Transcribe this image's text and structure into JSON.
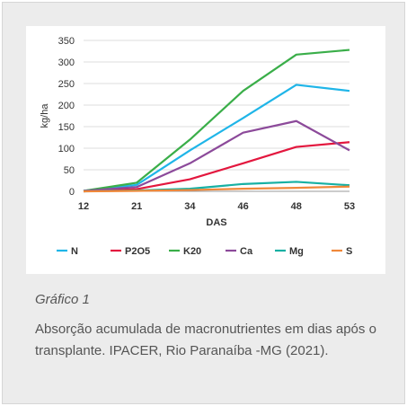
{
  "chart_data": {
    "type": "line",
    "title": "",
    "xlabel": "DAS",
    "ylabel": "kg/ha",
    "categories": [
      "12",
      "21",
      "34",
      "46",
      "48",
      "53"
    ],
    "ylim": [
      0,
      350
    ],
    "yticks": [
      0,
      50,
      100,
      150,
      200,
      250,
      300,
      350
    ],
    "grid": "horizontal",
    "legend_position": "bottom",
    "series": [
      {
        "name": "N",
        "color": "#1fb5e8",
        "values": [
          1,
          15,
          95,
          170,
          247,
          233
        ]
      },
      {
        "name": "P2O5",
        "color": "#e3173e",
        "values": [
          0,
          5,
          28,
          65,
          103,
          114
        ]
      },
      {
        "name": "K20",
        "color": "#3aae49",
        "values": [
          1,
          20,
          120,
          233,
          317,
          328
        ]
      },
      {
        "name": "Ca",
        "color": "#8c4a9a",
        "values": [
          1,
          10,
          65,
          136,
          163,
          95
        ]
      },
      {
        "name": "Mg",
        "color": "#17b0a3",
        "values": [
          0,
          2,
          6,
          17,
          22,
          14
        ]
      },
      {
        "name": "S",
        "color": "#f0883a",
        "values": [
          0,
          1,
          3,
          6,
          8,
          11
        ]
      }
    ]
  },
  "caption": {
    "title": "Gráfico 1",
    "text": "Absorção acumulada de macronutrientes em dias após o transplante. IPACER, Rio Paranaíba -MG (2021)."
  }
}
